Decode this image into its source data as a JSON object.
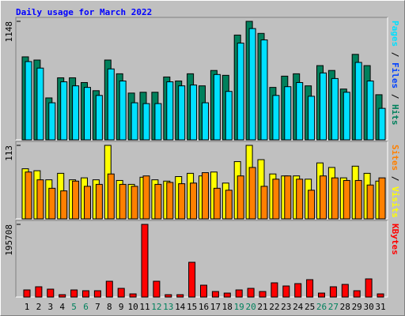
{
  "title": "Daily usage for March 2022",
  "legend_separator": " / ",
  "chart_data": [
    {
      "type": "bar",
      "ylim": [
        0,
        1148
      ],
      "yticks": [
        1148
      ],
      "categories": [
        "1",
        "2",
        "3",
        "4",
        "5",
        "6",
        "7",
        "8",
        "9",
        "10",
        "11",
        "12",
        "13",
        "14",
        "15",
        "16",
        "17",
        "18",
        "19",
        "20",
        "21",
        "22",
        "23",
        "24",
        "25",
        "26",
        "27",
        "28",
        "29",
        "30",
        "31"
      ],
      "series": [
        {
          "name": "Hits",
          "color": "#00805c",
          "values": [
            804,
            773,
            406,
            601,
            601,
            555,
            476,
            773,
            640,
            453,
            461,
            461,
            609,
            570,
            640,
            523,
            672,
            625,
            1015,
            1148,
            1031,
            508,
            617,
            640,
            523,
            719,
            672,
            492,
            828,
            719,
            437
          ]
        },
        {
          "name": "Pages",
          "color": "#00e0ff",
          "values": [
            758,
            695,
            359,
            562,
            523,
            508,
            430,
            687,
            570,
            359,
            351,
            351,
            562,
            523,
            531,
            359,
            633,
            469,
            937,
            1078,
            968,
            430,
            515,
            555,
            422,
            648,
            594,
            461,
            750,
            570,
            305
          ]
        }
      ],
      "legend_extra": {
        "name": "Files",
        "color": "#0040ff"
      }
    },
    {
      "type": "bar",
      "ylim": [
        0,
        113
      ],
      "yticks": [
        113
      ],
      "categories": [
        "1",
        "2",
        "3",
        "4",
        "5",
        "6",
        "7",
        "8",
        "9",
        "10",
        "11",
        "12",
        "13",
        "14",
        "15",
        "16",
        "17",
        "18",
        "19",
        "20",
        "21",
        "22",
        "23",
        "24",
        "25",
        "26",
        "27",
        "28",
        "29",
        "30",
        "31"
      ],
      "series": [
        {
          "name": "Visits",
          "color": "#ffff00",
          "values": [
            77,
            74,
            60,
            70,
            60,
            63,
            60,
            113,
            59,
            53,
            64,
            60,
            58,
            65,
            70,
            66,
            72,
            55,
            88,
            113,
            91,
            69,
            66,
            66,
            61,
            86,
            79,
            63,
            81,
            70,
            58
          ]
        },
        {
          "name": "Sites",
          "color": "#ff8000",
          "values": [
            72,
            60,
            47,
            43,
            58,
            50,
            53,
            69,
            53,
            50,
            66,
            53,
            56,
            54,
            55,
            71,
            47,
            44,
            66,
            79,
            50,
            61,
            66,
            61,
            44,
            66,
            63,
            59,
            59,
            52,
            63
          ]
        }
      ]
    },
    {
      "type": "bar",
      "ylim": [
        0,
        195708
      ],
      "yticks": [
        195708
      ],
      "categories": [
        "1",
        "2",
        "3",
        "4",
        "5",
        "6",
        "7",
        "8",
        "9",
        "10",
        "11",
        "12",
        "13",
        "14",
        "15",
        "16",
        "17",
        "18",
        "19",
        "20",
        "21",
        "22",
        "23",
        "24",
        "25",
        "26",
        "27",
        "28",
        "29",
        "30",
        "31"
      ],
      "category_colors": [
        "#000000",
        "#000000",
        "#000000",
        "#000000",
        "#00805c",
        "#00805c",
        "#000000",
        "#000000",
        "#000000",
        "#000000",
        "#000000",
        "#00805c",
        "#00805c",
        "#000000",
        "#000000",
        "#000000",
        "#000000",
        "#000000",
        "#00805c",
        "#00805c",
        "#000000",
        "#000000",
        "#000000",
        "#000000",
        "#000000",
        "#00805c",
        "#00805c",
        "#000000",
        "#000000",
        "#000000",
        "#000000"
      ],
      "series": [
        {
          "name": "KBytes",
          "color": "#ff0000",
          "values": [
            19143,
            27651,
            21270,
            6381,
            19143,
            17016,
            17016,
            42540,
            23397,
            8508,
            195708,
            42540,
            6381,
            6381,
            93588,
            31905,
            14889,
            10635,
            19143,
            23397,
            14889,
            38286,
            29778,
            36159,
            46794,
            10635,
            27651,
            34032,
            17016,
            48921,
            8508
          ]
        }
      ]
    }
  ]
}
